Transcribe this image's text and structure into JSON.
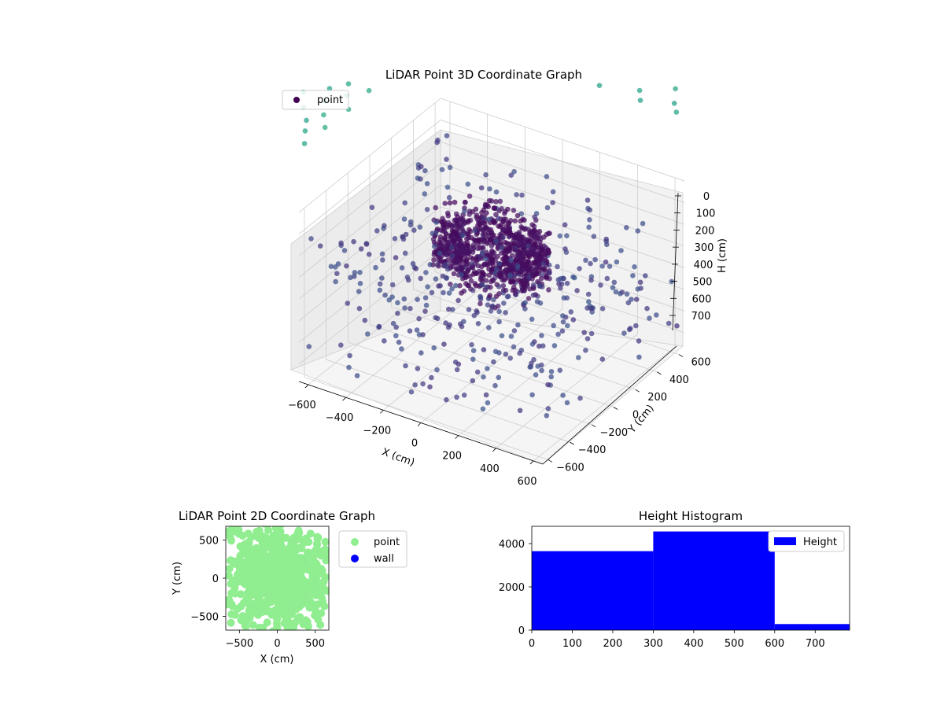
{
  "chart_data": [
    {
      "type": "scatter",
      "projection": "3d",
      "title": "LiDAR Point 3D Coordinate Graph",
      "xlabel": "X (cm)",
      "ylabel": "Y (cm)",
      "zlabel": "H (cm)",
      "x_ticks": [
        "−600",
        "−400",
        "−200",
        "0",
        "200",
        "400",
        "600"
      ],
      "y_ticks": [
        "−600",
        "−400",
        "−200",
        "0",
        "200",
        "400",
        "600"
      ],
      "z_ticks": [
        "0",
        "100",
        "200",
        "300",
        "400",
        "500",
        "600",
        "700"
      ],
      "xlim": [
        -650,
        650
      ],
      "ylim": [
        -650,
        650
      ],
      "zlim": [
        0,
        780
      ],
      "z_inverted": true,
      "grid": true,
      "legend": {
        "position": "top-left",
        "entries": [
          {
            "label": "point",
            "color": "#440154"
          }
        ]
      },
      "colormap": "viridis",
      "series": [
        {
          "name": "point",
          "description_note": "dense ring of points near the room center plus sparse scatter and vertical columns of points near the ceiling",
          "ring": {
            "center": [
              0,
              0
            ],
            "radius": 250,
            "h_range": [
              150,
              450
            ],
            "count": 900
          },
          "sparse": {
            "x_range": [
              -650,
              650
            ],
            "y_range": [
              -650,
              650
            ],
            "h_range": [
              100,
              700
            ],
            "count": 420
          },
          "columns": {
            "h_range": [
              0,
              780
            ],
            "count_per_column": 8
          }
        }
      ]
    },
    {
      "type": "scatter",
      "title": "LiDAR Point 2D Coordinate Graph",
      "xlabel": "X (cm)",
      "ylabel": "Y (cm)",
      "x_ticks": [
        "−500",
        "0",
        "500"
      ],
      "y_ticks": [
        "−500",
        "0",
        "500"
      ],
      "xlim": [
        -680,
        680
      ],
      "ylim": [
        -680,
        680
      ],
      "legend": {
        "position": "right",
        "entries": [
          {
            "label": "point",
            "color": "#90ee90"
          },
          {
            "label": "wall",
            "color": "#0000ff"
          }
        ]
      },
      "series": [
        {
          "name": "point",
          "color": "#90ee90",
          "count": 700
        },
        {
          "name": "wall",
          "color": "#0000ff",
          "count": 0
        }
      ]
    },
    {
      "type": "bar",
      "subtype": "histogram",
      "title": "Height Histogram",
      "x_ticks": [
        "0",
        "100",
        "200",
        "300",
        "400",
        "500",
        "600",
        "700"
      ],
      "y_ticks": [
        "0",
        "2000",
        "4000"
      ],
      "xlim": [
        0,
        785
      ],
      "ylim": [
        0,
        4800
      ],
      "bins": [
        {
          "start": 0,
          "end": 300,
          "count": 3650
        },
        {
          "start": 300,
          "end": 600,
          "count": 4560
        },
        {
          "start": 600,
          "end": 785,
          "count": 280
        }
      ],
      "color": "#0000ff",
      "legend": {
        "position": "top-right",
        "entries": [
          {
            "label": "Height",
            "color": "#0000ff"
          }
        ]
      }
    }
  ]
}
